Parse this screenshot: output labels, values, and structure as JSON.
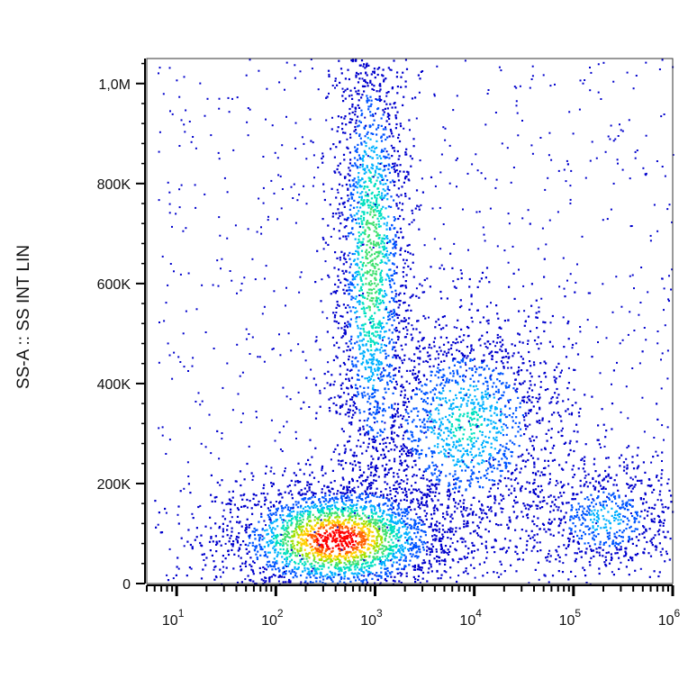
{
  "chart_data": {
    "type": "scatter",
    "subtype": "flow-cytometry-density-dot-plot",
    "title": "",
    "xlabel": "",
    "ylabel": "SS-A :: SS INT LIN",
    "x_scale": "log",
    "xlim": [
      5,
      1000000
    ],
    "ylim": [
      0,
      1050000
    ],
    "x_ticks": [
      {
        "value": 10,
        "base": "10",
        "exp": "1"
      },
      {
        "value": 100,
        "base": "10",
        "exp": "2"
      },
      {
        "value": 1000,
        "base": "10",
        "exp": "3"
      },
      {
        "value": 10000,
        "base": "10",
        "exp": "4"
      },
      {
        "value": 100000,
        "base": "10",
        "exp": "5"
      },
      {
        "value": 1000000,
        "base": "10",
        "exp": "6"
      }
    ],
    "y_ticks": [
      {
        "value": 0,
        "label": "0"
      },
      {
        "value": 200000,
        "label": "200K"
      },
      {
        "value": 400000,
        "label": "400K"
      },
      {
        "value": 600000,
        "label": "600K"
      },
      {
        "value": 800000,
        "label": "800K"
      },
      {
        "value": 1000000,
        "label": "1,0M"
      }
    ],
    "colormap": [
      "#0000cc",
      "#0055ff",
      "#00b0ff",
      "#00e0c0",
      "#40e070",
      "#a0e000",
      "#ffd000",
      "#ff6000",
      "#ff0000"
    ],
    "populations": [
      {
        "x_center": 400,
        "y_center": 90000,
        "x_spread_decades": 0.45,
        "y_spread": 45000,
        "density": 1.0
      },
      {
        "x_center": 900,
        "y_center": 650000,
        "x_spread_decades": 0.15,
        "y_spread": 200000,
        "density": 0.55
      },
      {
        "x_center": 8000,
        "y_center": 320000,
        "x_spread_decades": 0.4,
        "y_spread": 90000,
        "density": 0.4
      },
      {
        "x_center": 200000,
        "y_center": 130000,
        "x_spread_decades": 0.3,
        "y_spread": 45000,
        "density": 0.3
      }
    ],
    "grid": false,
    "legend": "none"
  }
}
